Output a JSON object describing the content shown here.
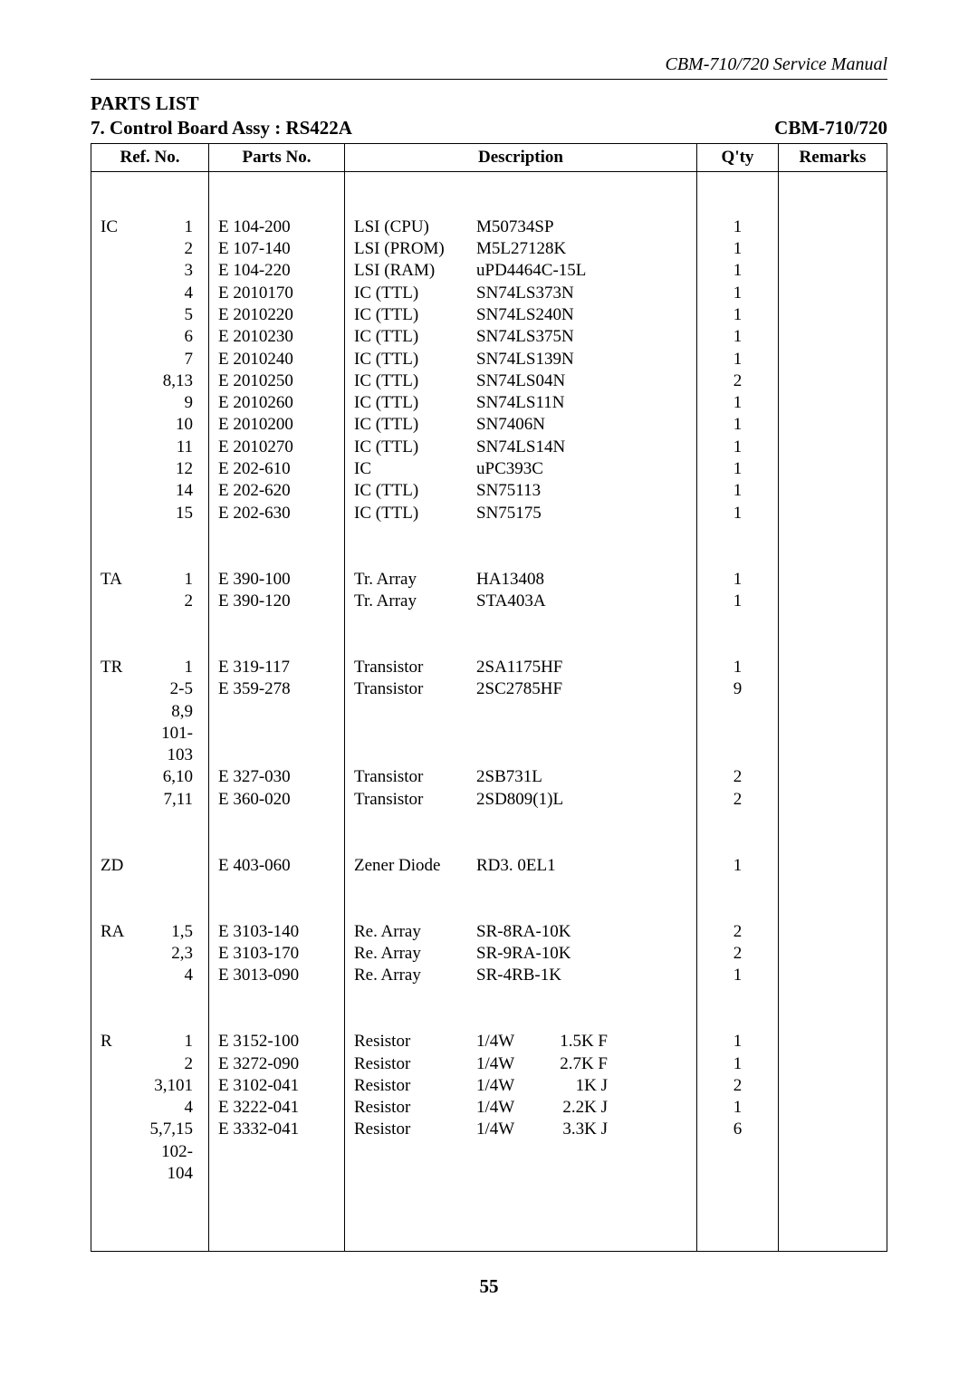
{
  "header_right": "CBM-710/720 Service Manual",
  "section_title": "PARTS LIST",
  "subtitle_left": "7. Control Board Assy : RS422A",
  "subtitle_right": "CBM-710/720",
  "page_number": "55",
  "columns": {
    "refno": "Ref. No.",
    "parts": "Parts No.",
    "desc": "Description",
    "qty": "Q'ty",
    "remarks": "Remarks"
  },
  "font": {
    "family": "Times New Roman",
    "body_size_pt": 14,
    "header_size_pt": 15
  },
  "colors": {
    "text": "#000000",
    "background": "#ffffff",
    "border": "#000000"
  },
  "rows": [
    {
      "type": "pad"
    },
    {
      "type": "blank"
    },
    {
      "prefix": "IC",
      "ref": "1",
      "part": "E 104-200",
      "desc_a": "LSI (CPU)",
      "desc_b": "",
      "desc_c": "M50734SP",
      "qty": "1"
    },
    {
      "prefix": "",
      "ref": "2",
      "part": "E 107-140",
      "desc_a": "LSI (PROM)",
      "desc_b": "",
      "desc_c": "M5L27128K",
      "qty": "1"
    },
    {
      "prefix": "",
      "ref": "3",
      "part": "E 104-220",
      "desc_a": "LSI (RAM)",
      "desc_b": "",
      "desc_c": "uPD4464C-15L",
      "qty": "1"
    },
    {
      "prefix": "",
      "ref": "4",
      "part": "E 2010170",
      "desc_a": "IC (TTL)",
      "desc_b": "",
      "desc_c": "SN74LS373N",
      "qty": "1"
    },
    {
      "prefix": "",
      "ref": "5",
      "part": "E 2010220",
      "desc_a": "IC (TTL)",
      "desc_b": "",
      "desc_c": "SN74LS240N",
      "qty": "1"
    },
    {
      "prefix": "",
      "ref": "6",
      "part": "E 2010230",
      "desc_a": "IC (TTL)",
      "desc_b": "",
      "desc_c": "SN74LS375N",
      "qty": "1"
    },
    {
      "prefix": "",
      "ref": "7",
      "part": "E 2010240",
      "desc_a": "IC (TTL)",
      "desc_b": "",
      "desc_c": "SN74LS139N",
      "qty": "1"
    },
    {
      "prefix": "",
      "ref": "8,13",
      "part": "E 2010250",
      "desc_a": "IC (TTL)",
      "desc_b": "",
      "desc_c": "SN74LS04N",
      "qty": "2"
    },
    {
      "prefix": "",
      "ref": "9",
      "part": "E 2010260",
      "desc_a": "IC (TTL)",
      "desc_b": "",
      "desc_c": "SN74LS11N",
      "qty": "1"
    },
    {
      "prefix": "",
      "ref": "10",
      "part": "E 2010200",
      "desc_a": "IC (TTL)",
      "desc_b": "",
      "desc_c": "SN7406N",
      "qty": "1"
    },
    {
      "prefix": "",
      "ref": "11",
      "part": "E 2010270",
      "desc_a": "IC (TTL)",
      "desc_b": "",
      "desc_c": "SN74LS14N",
      "qty": "1"
    },
    {
      "prefix": "",
      "ref": "12",
      "part": "E 202-610",
      "desc_a": "IC",
      "desc_b": "",
      "desc_c": "uPC393C",
      "qty": "1"
    },
    {
      "prefix": "",
      "ref": "14",
      "part": "E 202-620",
      "desc_a": "IC (TTL)",
      "desc_b": "",
      "desc_c": "SN75113",
      "qty": "1"
    },
    {
      "prefix": "",
      "ref": "15",
      "part": "E 202-630",
      "desc_a": "IC (TTL)",
      "desc_b": "",
      "desc_c": "SN75175",
      "qty": "1"
    },
    {
      "type": "blank"
    },
    {
      "type": "blank"
    },
    {
      "prefix": "TA",
      "ref": "1",
      "part": "E 390-100",
      "desc_a": "Tr. Array",
      "desc_b": "",
      "desc_c": "HA13408",
      "qty": "1"
    },
    {
      "prefix": "",
      "ref": "2",
      "part": "E 390-120",
      "desc_a": "Tr. Array",
      "desc_b": "",
      "desc_c": "STA403A",
      "qty": "1"
    },
    {
      "type": "blank"
    },
    {
      "type": "blank"
    },
    {
      "prefix": "TR",
      "ref": "1",
      "part": "E 319-117",
      "desc_a": "Transistor",
      "desc_b": "",
      "desc_c": "2SA1175HF",
      "qty": "1"
    },
    {
      "prefix": "",
      "ref": "2-5",
      "part": "E 359-278",
      "desc_a": "Transistor",
      "desc_b": "",
      "desc_c": "2SC2785HF",
      "qty": "9"
    },
    {
      "prefix": "",
      "ref": "8,9",
      "part": "",
      "desc_a": "",
      "desc_b": "",
      "desc_c": "",
      "qty": ""
    },
    {
      "prefix": "",
      "ref": "101-103",
      "part": "",
      "desc_a": "",
      "desc_b": "",
      "desc_c": "",
      "qty": ""
    },
    {
      "prefix": "",
      "ref": "6,10",
      "part": "E 327-030",
      "desc_a": "Transistor",
      "desc_b": "",
      "desc_c": "2SB731L",
      "qty": "2"
    },
    {
      "prefix": "",
      "ref": "7,11",
      "part": "E 360-020",
      "desc_a": "Transistor",
      "desc_b": "",
      "desc_c": "2SD809(1)L",
      "qty": "2"
    },
    {
      "type": "blank"
    },
    {
      "type": "blank"
    },
    {
      "prefix": "ZD",
      "ref": "",
      "part": "E 403-060",
      "desc_a": "Zener Diode",
      "desc_b": "",
      "desc_c": "RD3. 0EL1",
      "qty": "1"
    },
    {
      "type": "blank"
    },
    {
      "type": "blank"
    },
    {
      "prefix": "RA",
      "ref": "1,5",
      "part": "E 3103-140",
      "desc_a": "Re. Array",
      "desc_b": "",
      "desc_c": "SR-8RA-10K",
      "qty": "2"
    },
    {
      "prefix": "",
      "ref": "2,3",
      "part": "E 3103-170",
      "desc_a": "Re. Array",
      "desc_b": "",
      "desc_c": "SR-9RA-10K",
      "qty": "2"
    },
    {
      "prefix": "",
      "ref": "4",
      "part": "E 3013-090",
      "desc_a": "Re. Array",
      "desc_b": "",
      "desc_c": "SR-4RB-1K",
      "qty": "1"
    },
    {
      "type": "blank"
    },
    {
      "type": "blank"
    },
    {
      "prefix": "R",
      "ref": "1",
      "part": "E 3152-100",
      "desc_a": "Resistor",
      "desc_b": "1/4W",
      "desc_c": "1.5K  F",
      "qty": "1"
    },
    {
      "prefix": "",
      "ref": "2",
      "part": "E 3272-090",
      "desc_a": "Resistor",
      "desc_b": "1/4W",
      "desc_c": "2.7K  F",
      "qty": "1"
    },
    {
      "prefix": "",
      "ref": "3,101",
      "part": "E 3102-041",
      "desc_a": "Resistor",
      "desc_b": "1/4W",
      "desc_c": "1K  J",
      "qty": "2"
    },
    {
      "prefix": "",
      "ref": "4",
      "part": "E 3222-041",
      "desc_a": "Resistor",
      "desc_b": "1/4W",
      "desc_c": "2.2K  J",
      "qty": "1"
    },
    {
      "prefix": "",
      "ref": "5,7,15",
      "part": "E 3332-041",
      "desc_a": "Resistor",
      "desc_b": "1/4W",
      "desc_c": "3.3K  J",
      "qty": "6"
    },
    {
      "prefix": "",
      "ref": "102-104",
      "part": "",
      "desc_a": "",
      "desc_b": "",
      "desc_c": "",
      "qty": ""
    },
    {
      "type": "blank"
    },
    {
      "type": "blank"
    },
    {
      "type": "blank"
    }
  ]
}
